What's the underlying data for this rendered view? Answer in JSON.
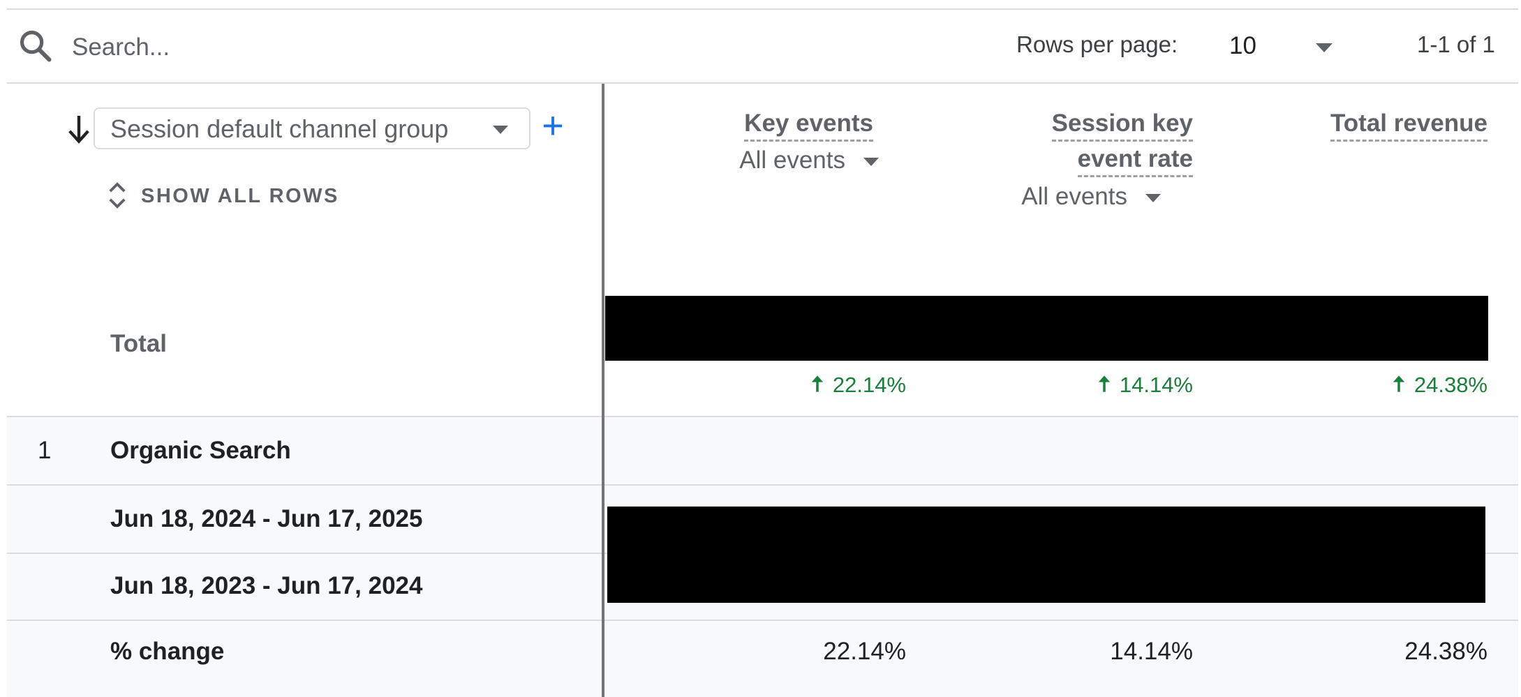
{
  "toolbar": {
    "search_placeholder": "Search...",
    "rows_per_page_label": "Rows per page:",
    "rows_per_page_value": "10",
    "pagination_text": "1-1 of 1"
  },
  "header": {
    "dimension_label": "Session default channel group",
    "add_dimension_label": "+",
    "show_all_rows_label": "SHOW ALL ROWS",
    "metrics": [
      {
        "title": "Key events",
        "subtitle": "All events"
      },
      {
        "title_line1": "Session key",
        "title_line2": "event rate",
        "subtitle": "All events"
      },
      {
        "title": "Total revenue"
      }
    ]
  },
  "total_row": {
    "label": "Total",
    "changes": [
      "22.14%",
      "14.14%",
      "24.38%"
    ]
  },
  "rows": [
    {
      "index": "1",
      "label": "Organic Search",
      "periods": [
        "Jun 18, 2024 - Jun 17, 2025",
        "Jun 18, 2023 - Jun 17, 2024"
      ],
      "change_label": "% change",
      "changes": [
        "22.14%",
        "14.14%",
        "24.38%"
      ]
    }
  ],
  "colors": {
    "accent": "#1a73e8",
    "positive": "#188038",
    "redacted": "#000000",
    "row_background": "#f8f9fa"
  },
  "icons": [
    "search-icon",
    "chevron-down-icon",
    "arrow-down-icon",
    "plus-icon",
    "expand-vertical-icon",
    "arrow-up-icon"
  ]
}
